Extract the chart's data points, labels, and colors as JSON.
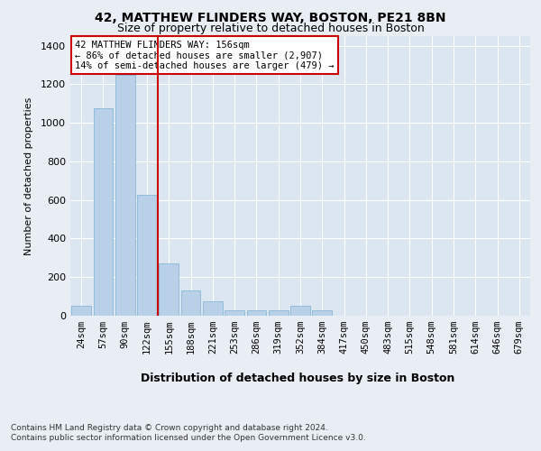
{
  "title1": "42, MATTHEW FLINDERS WAY, BOSTON, PE21 8BN",
  "title2": "Size of property relative to detached houses in Boston",
  "xlabel": "Distribution of detached houses by size in Boston",
  "ylabel": "Number of detached properties",
  "categories": [
    "24sqm",
    "57sqm",
    "90sqm",
    "122sqm",
    "155sqm",
    "188sqm",
    "221sqm",
    "253sqm",
    "286sqm",
    "319sqm",
    "352sqm",
    "384sqm",
    "417sqm",
    "450sqm",
    "483sqm",
    "515sqm",
    "548sqm",
    "581sqm",
    "614sqm",
    "646sqm",
    "679sqm"
  ],
  "values": [
    50,
    1075,
    1250,
    625,
    270,
    130,
    75,
    30,
    28,
    28,
    50,
    28,
    0,
    0,
    0,
    0,
    0,
    0,
    0,
    0,
    0
  ],
  "bar_color": "#b8d0e8",
  "bar_edge_color": "#7aafd4",
  "vline_color": "#cc0000",
  "annotation_text": "42 MATTHEW FLINDERS WAY: 156sqm\n← 86% of detached houses are smaller (2,907)\n14% of semi-detached houses are larger (479) →",
  "annotation_box_color": "#ffffff",
  "annotation_box_edge": "#cc0000",
  "ylim": [
    0,
    1450
  ],
  "yticks": [
    0,
    200,
    400,
    600,
    800,
    1000,
    1200,
    1400
  ],
  "bg_color": "#e8eef4",
  "plot_bg": "#dce6f0",
  "footer1": "Contains HM Land Registry data © Crown copyright and database right 2024.",
  "footer2": "Contains public sector information licensed under the Open Government Licence v3.0."
}
